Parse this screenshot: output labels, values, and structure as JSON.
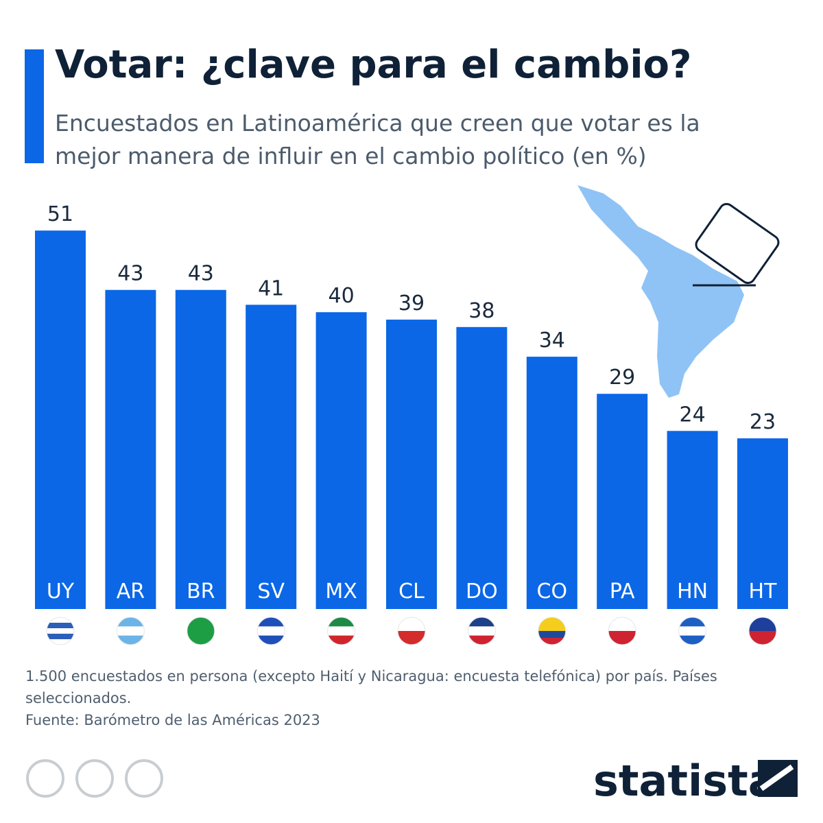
{
  "chart_data": {
    "type": "bar",
    "title": "Votar: ¿clave para el cambio?",
    "subtitle": "Encuestados en Latinoamérica que creen que votar es la mejor manera de influir en el cambio político (en %)",
    "categories": [
      "UY",
      "AR",
      "BR",
      "SV",
      "MX",
      "CL",
      "DO",
      "CO",
      "PA",
      "HN",
      "HT"
    ],
    "values": [
      51,
      43,
      43,
      41,
      40,
      39,
      38,
      34,
      29,
      24,
      23
    ],
    "color": "#0b67e6",
    "note": "1.500 encuestados en persona (excepto Haití y Nicaragua: encuesta telefónica) por país. Países seleccionados.",
    "source": "Fuente: Barómetro de las Américas 2023",
    "brand": "statista"
  }
}
